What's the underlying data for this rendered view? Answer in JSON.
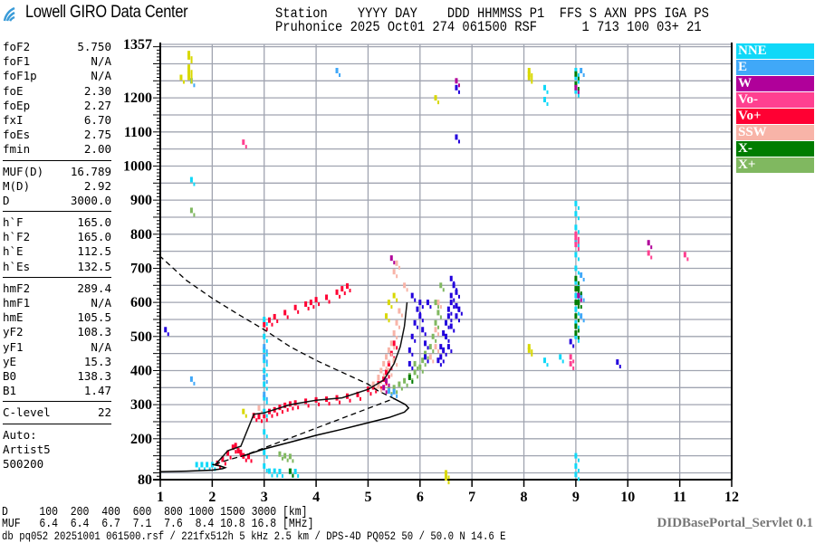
{
  "header": {
    "logo_text": "Lowell GIRO Data Center",
    "line1": "Station    YYYY DAY    DDD HHMMSS P1  FFS S AXN PPS IGA PS",
    "line2": "Pruhonice 2025 Oct01 274 061500 RSF      1 713 100 03+ 21"
  },
  "params": {
    "groups": [
      [
        [
          "foF2",
          "5.750"
        ],
        [
          "foF1",
          "N/A"
        ],
        [
          "foF1p",
          "N/A"
        ],
        [
          "foE",
          "2.30"
        ],
        [
          "foEp",
          "2.27"
        ],
        [
          "fxI",
          "6.70"
        ],
        [
          "foEs",
          "2.75"
        ],
        [
          "fmin",
          "2.00"
        ]
      ],
      [
        [
          "MUF(D)",
          "16.789"
        ],
        [
          "M(D)",
          "2.92"
        ],
        [
          "D",
          "3000.0"
        ]
      ],
      [
        [
          "h`F",
          "165.0"
        ],
        [
          "h`F2",
          "165.0"
        ],
        [
          "h`E",
          "112.5"
        ],
        [
          "h`Es",
          "132.5"
        ]
      ],
      [
        [
          "hmF2",
          "289.4"
        ],
        [
          "hmF1",
          "N/A"
        ],
        [
          "hmE",
          "105.5"
        ],
        [
          "yF2",
          "108.3"
        ],
        [
          "yF1",
          "N/A"
        ],
        [
          "yE",
          "15.3"
        ],
        [
          "B0",
          "138.3"
        ],
        [
          "B1",
          "1.47"
        ]
      ],
      [
        [
          "C-level",
          "22"
        ]
      ]
    ],
    "auto": [
      "Auto:",
      "Artist5",
      "500200"
    ]
  },
  "legend": [
    {
      "label": "NNE",
      "color": "#10d8f8"
    },
    {
      "label": "E",
      "color": "#40a8f8"
    },
    {
      "label": "W",
      "color": "#b0009a"
    },
    {
      "label": "Vo-",
      "color": "#ff4090"
    },
    {
      "label": "Vo+",
      "color": "#ff0033"
    },
    {
      "label": "SSW",
      "color": "#f8b4a8"
    },
    {
      "label": "X-",
      "color": "#007c00"
    },
    {
      "label": "X+",
      "color": "#80b860"
    }
  ],
  "extra_colors": {
    "blue": "#2200dd",
    "yellow": "#d8d800"
  },
  "muf_table": {
    "d_row": "D     100  200  400  600  800 1000 1500 3000 [km]",
    "muf_row": "MUF   6.4  6.4  6.7  7.1  7.6  8.4 10.8 16.8 [MHz]"
  },
  "footer": "db pq052 20251001 061500.rsf / 221fx512h 5 kHz 2.5 km / DPS-4D PQ052 50 / 50.0 N 14.6 E",
  "servlet": "DIDBasePortal_Servlet 0.1",
  "chart_data": {
    "type": "scatter",
    "xlim": [
      1,
      12
    ],
    "ylim": [
      80,
      1357
    ],
    "x_ticks": [
      "1",
      "2",
      "3",
      "4",
      "5",
      "6",
      "7",
      "8",
      "9",
      "10",
      "11",
      "12"
    ],
    "y_ticks": [
      "80",
      "200",
      "300",
      "400",
      "500",
      "600",
      "700",
      "800",
      "900",
      "1000",
      "1100",
      "1200",
      "1357"
    ],
    "grid": true,
    "legend_placement": "right",
    "traces": {
      "profile_solid": [
        [
          1.0,
          103
        ],
        [
          1.5,
          105
        ],
        [
          2.0,
          108
        ],
        [
          2.2,
          112
        ],
        [
          2.25,
          115
        ],
        [
          2.15,
          120
        ],
        [
          2.0,
          125
        ]
      ],
      "virtual_height_solid": [
        [
          2.05,
          122
        ],
        [
          2.3,
          165
        ],
        [
          2.55,
          178
        ],
        [
          2.8,
          272
        ],
        [
          3.0,
          276
        ],
        [
          3.5,
          300
        ],
        [
          4.0,
          313
        ],
        [
          4.5,
          320
        ],
        [
          5.0,
          345
        ],
        [
          5.3,
          372
        ],
        [
          5.5,
          420
        ],
        [
          5.62,
          470
        ],
        [
          5.7,
          530
        ],
        [
          5.75,
          600
        ]
      ],
      "real_height_solid": [
        [
          2.6,
          150
        ],
        [
          3.0,
          170
        ],
        [
          3.5,
          190
        ],
        [
          4.0,
          210
        ],
        [
          4.5,
          228
        ],
        [
          5.0,
          247
        ],
        [
          5.4,
          262
        ],
        [
          5.7,
          278
        ],
        [
          5.78,
          290
        ],
        [
          5.72,
          300
        ],
        [
          5.5,
          318
        ]
      ],
      "dashed": [
        [
          2.05,
          125
        ],
        [
          2.3,
          138
        ],
        [
          2.6,
          150
        ],
        [
          5.5,
          318
        ],
        [
          5.2,
          340
        ],
        [
          5.0,
          360
        ],
        [
          4.5,
          395
        ],
        [
          4.0,
          430
        ],
        [
          3.5,
          470
        ],
        [
          3.0,
          520
        ],
        [
          2.5,
          565
        ],
        [
          2.0,
          612
        ],
        [
          1.5,
          665
        ],
        [
          1.0,
          735
        ]
      ]
    },
    "points": [
      {
        "color": "Vo+",
        "xy": [
          [
            2.1,
            128
          ],
          [
            2.2,
            140
          ],
          [
            2.3,
            158
          ],
          [
            2.4,
            175
          ],
          [
            2.45,
            180
          ],
          [
            2.5,
            165
          ],
          [
            2.55,
            160
          ],
          [
            2.6,
            150
          ],
          [
            2.7,
            148
          ],
          [
            2.8,
            268
          ],
          [
            2.9,
            265
          ],
          [
            3.0,
            268
          ],
          [
            3.1,
            280
          ],
          [
            3.2,
            285
          ],
          [
            3.3,
            292
          ],
          [
            3.4,
            298
          ],
          [
            3.5,
            302
          ],
          [
            3.6,
            305
          ],
          [
            3.8,
            310
          ],
          [
            4.0,
            314
          ],
          [
            4.2,
            316
          ],
          [
            4.4,
            320
          ],
          [
            4.6,
            325
          ],
          [
            4.8,
            330
          ],
          [
            5.0,
            345
          ],
          [
            5.1,
            352
          ],
          [
            5.2,
            362
          ],
          [
            5.3,
            375
          ],
          [
            5.35,
            395
          ],
          [
            5.4,
            420
          ],
          [
            5.45,
            450
          ],
          [
            5.5,
            480
          ],
          [
            3.0,
            535
          ],
          [
            3.1,
            548
          ],
          [
            3.2,
            558
          ],
          [
            3.4,
            570
          ],
          [
            3.6,
            585
          ],
          [
            3.8,
            595
          ],
          [
            3.9,
            600
          ],
          [
            4.0,
            608
          ],
          [
            4.2,
            615
          ],
          [
            4.4,
            630
          ],
          [
            4.5,
            640
          ],
          [
            4.6,
            648
          ]
        ]
      },
      {
        "color": "SSW",
        "xy": [
          [
            2.9,
            290
          ],
          [
            5.1,
            360
          ],
          [
            5.2,
            380
          ],
          [
            5.25,
            400
          ],
          [
            5.3,
            420
          ],
          [
            5.35,
            440
          ],
          [
            5.4,
            460
          ],
          [
            5.45,
            480
          ],
          [
            5.5,
            510
          ],
          [
            5.55,
            540
          ],
          [
            5.6,
            575
          ],
          [
            5.2,
            355
          ],
          [
            5.4,
            400
          ],
          [
            5.5,
            430
          ],
          [
            6.3,
            520
          ],
          [
            6.35,
            600
          ],
          [
            6.3,
            470
          ],
          [
            6.2,
            440
          ],
          [
            5.7,
            650
          ],
          [
            5.5,
            690
          ],
          [
            5.55,
            715
          ]
        ]
      },
      {
        "color": "X+",
        "xy": [
          [
            5.4,
            345
          ],
          [
            5.5,
            350
          ],
          [
            5.6,
            360
          ],
          [
            5.7,
            370
          ],
          [
            5.8,
            385
          ],
          [
            5.9,
            395
          ],
          [
            6.0,
            410
          ],
          [
            6.05,
            430
          ],
          [
            6.1,
            450
          ],
          [
            5.9,
            420
          ],
          [
            6.2,
            470
          ],
          [
            6.25,
            500
          ],
          [
            6.3,
            540
          ],
          [
            6.35,
            570
          ],
          [
            6.3,
            600
          ],
          [
            6.4,
            650
          ],
          [
            3.3,
            155
          ],
          [
            3.4,
            150
          ],
          [
            3.5,
            148
          ],
          [
            1.6,
            870
          ]
        ]
      },
      {
        "color": "blue",
        "xy": [
          [
            5.8,
            420
          ],
          [
            5.8,
            460
          ],
          [
            5.85,
            500
          ],
          [
            5.9,
            540
          ],
          [
            5.95,
            580
          ],
          [
            6.0,
            600
          ],
          [
            6.0,
            560
          ],
          [
            6.05,
            520
          ],
          [
            6.1,
            480
          ],
          [
            6.1,
            440
          ],
          [
            6.15,
            600
          ],
          [
            5.85,
            620
          ],
          [
            6.35,
            430
          ],
          [
            6.4,
            470
          ],
          [
            6.45,
            510
          ],
          [
            6.5,
            540
          ],
          [
            6.55,
            580
          ],
          [
            6.6,
            620
          ],
          [
            6.65,
            650
          ],
          [
            6.6,
            600
          ],
          [
            6.55,
            560
          ],
          [
            6.7,
            590
          ],
          [
            6.7,
            630
          ],
          [
            6.6,
            670
          ],
          [
            6.45,
            460
          ],
          [
            6.5,
            500
          ],
          [
            6.4,
            440
          ],
          [
            6.6,
            530
          ],
          [
            6.7,
            560
          ],
          [
            6.75,
            580
          ],
          [
            6.55,
            470
          ],
          [
            1.1,
            520
          ],
          [
            6.7,
            1230
          ],
          [
            6.7,
            1085
          ],
          [
            8.9,
            485
          ],
          [
            9.8,
            425
          ]
        ]
      },
      {
        "color": "NNE",
        "xy": [
          [
            1.7,
            124
          ],
          [
            1.8,
            124
          ],
          [
            1.9,
            124
          ],
          [
            2.0,
            124
          ],
          [
            3.0,
            120
          ],
          [
            3.0,
            160
          ],
          [
            3.0,
            220
          ],
          [
            3.0,
            280
          ],
          [
            3.0,
            320
          ],
          [
            3.0,
            360
          ],
          [
            3.0,
            400
          ],
          [
            3.0,
            430
          ],
          [
            3.0,
            460
          ],
          [
            3.0,
            500
          ],
          [
            3.0,
            550
          ],
          [
            3.1,
            105
          ],
          [
            3.2,
            105
          ],
          [
            3.3,
            104
          ],
          [
            3.5,
            104
          ],
          [
            3.6,
            104
          ],
          [
            1.6,
            960
          ],
          [
            9.0,
            500
          ],
          [
            9.0,
            540
          ],
          [
            9.0,
            580
          ],
          [
            9.0,
            620
          ],
          [
            9.0,
            660
          ],
          [
            9.0,
            700
          ],
          [
            9.0,
            740
          ],
          [
            9.0,
            780
          ],
          [
            9.0,
            820
          ],
          [
            9.0,
            860
          ],
          [
            9.0,
            890
          ],
          [
            9.0,
            150
          ],
          [
            9.0,
            120
          ],
          [
            9.0,
            95
          ],
          [
            9.0,
            1280
          ],
          [
            9.0,
            1260
          ],
          [
            8.4,
            1230
          ],
          [
            8.4,
            1195
          ],
          [
            8.7,
            440
          ],
          [
            8.4,
            430
          ],
          [
            9.0,
            1220
          ]
        ]
      },
      {
        "color": "E",
        "xy": [
          [
            3.0,
            330
          ],
          [
            3.0,
            380
          ],
          [
            3.0,
            440
          ],
          [
            5.4,
            340
          ],
          [
            5.5,
            338
          ],
          [
            3.0,
            470
          ],
          [
            9.1,
            560
          ],
          [
            9.1,
            620
          ],
          [
            9.1,
            680
          ],
          [
            4.4,
            1280
          ],
          [
            1.6,
            375
          ],
          [
            1.6,
            1250
          ],
          [
            9.1,
            1280
          ]
        ]
      },
      {
        "color": "X-",
        "xy": [
          [
            9.0,
            510
          ],
          [
            9.0,
            530
          ],
          [
            9.0,
            560
          ],
          [
            9.0,
            600
          ],
          [
            9.0,
            640
          ],
          [
            9.05,
            600
          ],
          [
            9.05,
            640
          ],
          [
            9.0,
            1270
          ],
          [
            9.0,
            1240
          ],
          [
            5.8,
            380
          ],
          [
            3.5,
            105
          ],
          [
            9.0,
            670
          ]
        ]
      },
      {
        "color": "W",
        "xy": [
          [
            5.3,
            350
          ],
          [
            5.35,
            370
          ],
          [
            6.7,
            1250
          ],
          [
            9.0,
            1230
          ],
          [
            9.05,
            620
          ],
          [
            5.45,
            730
          ],
          [
            10.4,
            775
          ]
        ]
      },
      {
        "color": "Vo-",
        "xy": [
          [
            9.0,
            770
          ],
          [
            9.0,
            790
          ],
          [
            9.0,
            800
          ],
          [
            8.9,
            440
          ],
          [
            8.9,
            420
          ],
          [
            10.4,
            745
          ],
          [
            11.1,
            740
          ],
          [
            2.6,
            1070
          ]
        ]
      },
      {
        "color": "yellow",
        "xy": [
          [
            1.55,
            1330
          ],
          [
            1.55,
            1320
          ],
          [
            1.55,
            1290
          ],
          [
            1.55,
            1280
          ],
          [
            1.55,
            1270
          ],
          [
            1.55,
            1260
          ],
          [
            8.1,
            1270
          ],
          [
            8.1,
            1260
          ],
          [
            8.1,
            1280
          ],
          [
            8.1,
            470
          ],
          [
            8.1,
            460
          ],
          [
            6.5,
            85
          ],
          [
            6.5,
            100
          ],
          [
            5.4,
            600
          ],
          [
            5.5,
            620
          ],
          [
            5.35,
            560
          ],
          [
            2.6,
            280
          ],
          [
            6.3,
            1200
          ],
          [
            1.4,
            1260
          ]
        ]
      }
    ]
  }
}
